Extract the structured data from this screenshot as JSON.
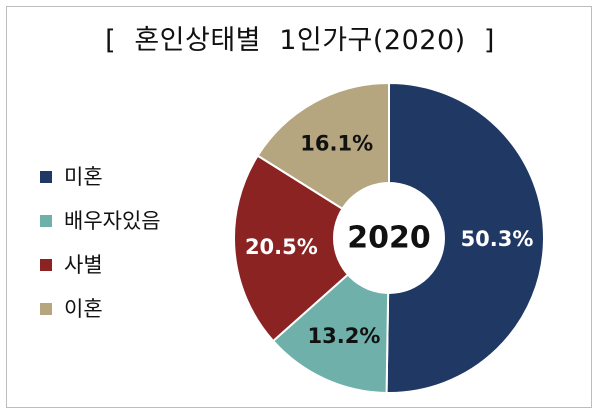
{
  "chart_data": {
    "type": "pie",
    "title": "[  혼인상태별  1인가구(2020)  ]",
    "center_label": "2020",
    "legend_position": "left",
    "slices": [
      {
        "label": "미혼",
        "value": 50.3,
        "value_label": "50.3%",
        "color": "#1f3864",
        "text_color": "#ffffff"
      },
      {
        "label": "배우자있음",
        "value": 13.2,
        "value_label": "13.2%",
        "color": "#6fb0aa",
        "text_color": "#111111"
      },
      {
        "label": "사별",
        "value": 20.5,
        "value_label": "20.5%",
        "color": "#8b2323",
        "text_color": "#ffffff"
      },
      {
        "label": "이혼",
        "value": 16.1,
        "value_label": "16.1%",
        "color": "#b5a67f",
        "text_color": "#111111"
      }
    ]
  }
}
